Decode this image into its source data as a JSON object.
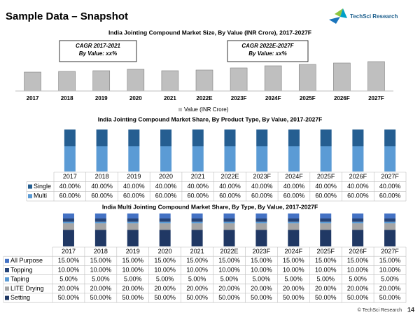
{
  "header": {
    "title": "Sample Data – Snapshot",
    "logo": "TechSci Research"
  },
  "chart_data": [
    {
      "type": "bar",
      "title": "India Jointing Compound Market Size, By Value (INR Crore), 2017-2027F",
      "categories": [
        "2017",
        "2018",
        "2019",
        "2020",
        "2021",
        "2022E",
        "2023F",
        "2024F",
        "2025F",
        "2026F",
        "2027F"
      ],
      "series": [
        {
          "name": "Value (INR Crore)",
          "color": "#bfbfbf",
          "values": [
            27,
            28,
            29,
            31,
            29,
            30,
            33,
            36,
            38,
            40,
            42
          ]
        }
      ],
      "ylim": [
        0,
        45
      ],
      "annotations": [
        {
          "title": "CAGR 2017-2021",
          "text": "By Value: xx%"
        },
        {
          "title": "CAGR 2022E-2027F",
          "text": "By Value: xx%"
        }
      ]
    },
    {
      "type": "stacked_bar_table",
      "title": "India Jointing Compound Market Share, By Product Type, By Value, 2017-2027F",
      "categories": [
        "2017",
        "2018",
        "2019",
        "2020",
        "2021",
        "2022E",
        "2023F",
        "2024F",
        "2025F",
        "2026F",
        "2027F"
      ],
      "series": [
        {
          "name": "Single",
          "color": "#255e91",
          "values": [
            40,
            40,
            40,
            40,
            40,
            40,
            40,
            40,
            40,
            40,
            40
          ],
          "value_labels": [
            "40.00%",
            "40.00%",
            "40.00%",
            "40.00%",
            "40.00%",
            "40.00%",
            "40.00%",
            "40.00%",
            "40.00%",
            "40.00%",
            "40.00%"
          ]
        },
        {
          "name": "Multi",
          "color": "#5b9bd5",
          "values": [
            60,
            60,
            60,
            60,
            60,
            60,
            60,
            60,
            60,
            60,
            60
          ],
          "value_labels": [
            "60.00%",
            "60.00%",
            "60.00%",
            "60.00%",
            "60.00%",
            "60.00%",
            "60.00%",
            "60.00%",
            "60.00%",
            "60.00%",
            "60.00%"
          ]
        }
      ],
      "ylim": [
        0,
        100
      ]
    },
    {
      "type": "stacked_bar_table",
      "title": "India Multi Jointing Compound Market Share, By Type, By Value, 2017-2027F",
      "categories": [
        "2017",
        "2018",
        "2019",
        "2020",
        "2021",
        "2022E",
        "2023F",
        "2024F",
        "2025F",
        "2026F",
        "2027F"
      ],
      "series": [
        {
          "name": "All Purpose",
          "color": "#4472c4",
          "values": [
            15,
            15,
            15,
            15,
            15,
            15,
            15,
            15,
            15,
            15,
            15
          ],
          "value_labels": [
            "15.00%",
            "15.00%",
            "15.00%",
            "15.00%",
            "15.00%",
            "15.00%",
            "15.00%",
            "15.00%",
            "15.00%",
            "15.00%",
            "15.00%"
          ]
        },
        {
          "name": "Topping",
          "color": "#264478",
          "values": [
            10,
            10,
            10,
            10,
            10,
            10,
            10,
            10,
            10,
            10,
            10
          ],
          "value_labels": [
            "10.00%",
            "10.00%",
            "10.00%",
            "10.00%",
            "10.00%",
            "10.00%",
            "10.00%",
            "10.00%",
            "10.00%",
            "10.00%",
            "10.00%"
          ]
        },
        {
          "name": "Taping",
          "color": "#5b9bd5",
          "values": [
            5,
            5,
            5,
            5,
            5,
            5,
            5,
            5,
            5,
            5,
            5
          ],
          "value_labels": [
            "5.00%",
            "5.00%",
            "5.00%",
            "5.00%",
            "5.00%",
            "5.00%",
            "5.00%",
            "5.00%",
            "5.00%",
            "5.00%",
            "5.00%"
          ]
        },
        {
          "name": "LITE Drying",
          "color": "#a5a5a5",
          "values": [
            20,
            20,
            20,
            20,
            20,
            20,
            20,
            20,
            20,
            20,
            20
          ],
          "value_labels": [
            "20.00%",
            "20.00%",
            "20.00%",
            "20.00%",
            "20.00%",
            "20.00%",
            "20.00%",
            "20.00%",
            "20.00%",
            "20.00%",
            "20.00%"
          ]
        },
        {
          "name": "Setting",
          "color": "#203864",
          "values": [
            50,
            50,
            50,
            50,
            50,
            50,
            50,
            50,
            50,
            50,
            50
          ],
          "value_labels": [
            "50.00%",
            "50.00%",
            "50.00%",
            "50.00%",
            "50.00%",
            "50.00%",
            "50.00%",
            "50.00%",
            "50.00%",
            "50.00%",
            "50.00%"
          ]
        }
      ],
      "ylim": [
        0,
        100
      ]
    }
  ],
  "footer": {
    "copyright": "© TechSci Research",
    "page": "14"
  }
}
